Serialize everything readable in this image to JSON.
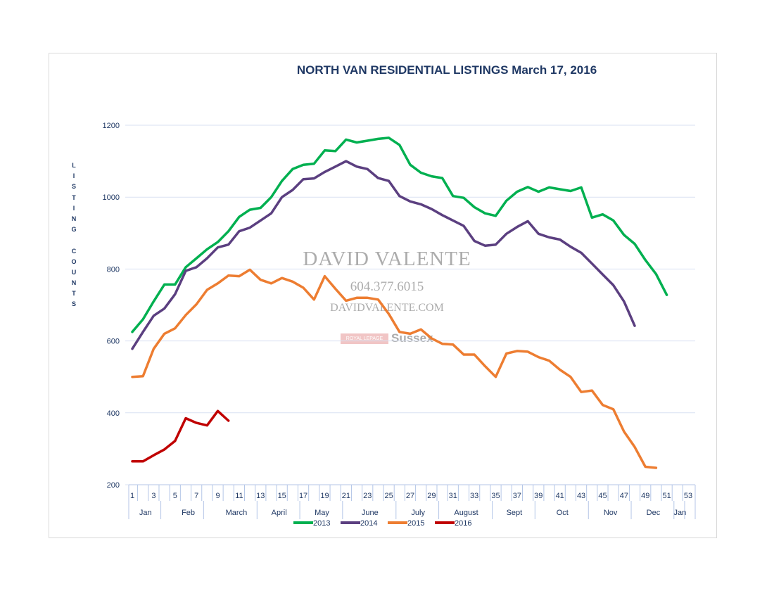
{
  "chart_data": {
    "type": "line",
    "title": "NORTH VAN RESIDENTIAL LISTINGS March 17, 2016",
    "ylabel": "LISTING COUNTS",
    "xlabel": "",
    "ylim": [
      200,
      1200
    ],
    "xlim": [
      1,
      53
    ],
    "yticks": [
      200,
      400,
      600,
      800,
      1000,
      1200
    ],
    "xticks": [
      1,
      3,
      5,
      7,
      9,
      11,
      13,
      15,
      17,
      19,
      21,
      23,
      25,
      27,
      29,
      31,
      33,
      35,
      37,
      39,
      41,
      43,
      45,
      47,
      49,
      51,
      53
    ],
    "months": [
      {
        "label": "Jan",
        "from": 1,
        "to": 4
      },
      {
        "label": "Feb",
        "from": 5,
        "to": 8
      },
      {
        "label": "March",
        "from": 9,
        "to": 13
      },
      {
        "label": "April",
        "from": 13,
        "to": 17
      },
      {
        "label": "May",
        "from": 17,
        "to": 21
      },
      {
        "label": "June",
        "from": 21,
        "to": 26
      },
      {
        "label": "July",
        "from": 26,
        "to": 30
      },
      {
        "label": "August",
        "from": 30,
        "to": 35
      },
      {
        "label": "Sept",
        "from": 35,
        "to": 39
      },
      {
        "label": "Oct",
        "from": 39,
        "to": 44
      },
      {
        "label": "Nov",
        "from": 44,
        "to": 48
      },
      {
        "label": "Dec",
        "from": 48,
        "to": 52
      },
      {
        "label": "Jan",
        "from": 52,
        "to": 53
      }
    ],
    "series": [
      {
        "name": "2013",
        "color": "#00b050",
        "start_week": 1,
        "values": [
          625,
          660,
          710,
          757,
          757,
          805,
          830,
          855,
          875,
          905,
          945,
          965,
          970,
          1000,
          1045,
          1078,
          1090,
          1093,
          1130,
          1128,
          1160,
          1152,
          1157,
          1162,
          1165,
          1145,
          1090,
          1068,
          1058,
          1053,
          1003,
          998,
          972,
          955,
          948,
          990,
          1015,
          1028,
          1015,
          1027,
          1022,
          1017,
          1027,
          943,
          952,
          935,
          895,
          870,
          825,
          786,
          728
        ]
      },
      {
        "name": "2014",
        "color": "#5b3f80",
        "start_week": 1,
        "values": [
          578,
          625,
          670,
          690,
          730,
          795,
          805,
          830,
          860,
          868,
          905,
          915,
          935,
          955,
          1000,
          1020,
          1050,
          1052,
          1070,
          1085,
          1100,
          1085,
          1078,
          1053,
          1045,
          1003,
          988,
          980,
          967,
          950,
          935,
          920,
          878,
          865,
          868,
          898,
          917,
          933,
          898,
          888,
          882,
          862,
          845,
          815,
          785,
          755,
          710,
          642
        ]
      },
      {
        "name": "2015",
        "color": "#ed7d31",
        "start_week": 1,
        "values": [
          500,
          502,
          578,
          620,
          635,
          672,
          702,
          742,
          760,
          782,
          780,
          798,
          770,
          760,
          775,
          765,
          748,
          715,
          780,
          745,
          712,
          720,
          720,
          715,
          675,
          625,
          620,
          632,
          607,
          592,
          590,
          562,
          562,
          530,
          500,
          565,
          572,
          570,
          555,
          545,
          520,
          500,
          458,
          462,
          422,
          410,
          348,
          305,
          250,
          247
        ]
      },
      {
        "name": "2016",
        "color": "#c00000",
        "start_week": 1,
        "values": [
          265,
          265,
          282,
          298,
          322,
          385,
          372,
          365,
          405,
          378
        ]
      }
    ]
  },
  "watermark": {
    "name": "DAVID VALENTE",
    "phone": "604.377.6015",
    "website": "DAVIDVALENTE.COM",
    "brand_box": "ROYAL LEPAGE",
    "brand_name": "Sussex"
  }
}
